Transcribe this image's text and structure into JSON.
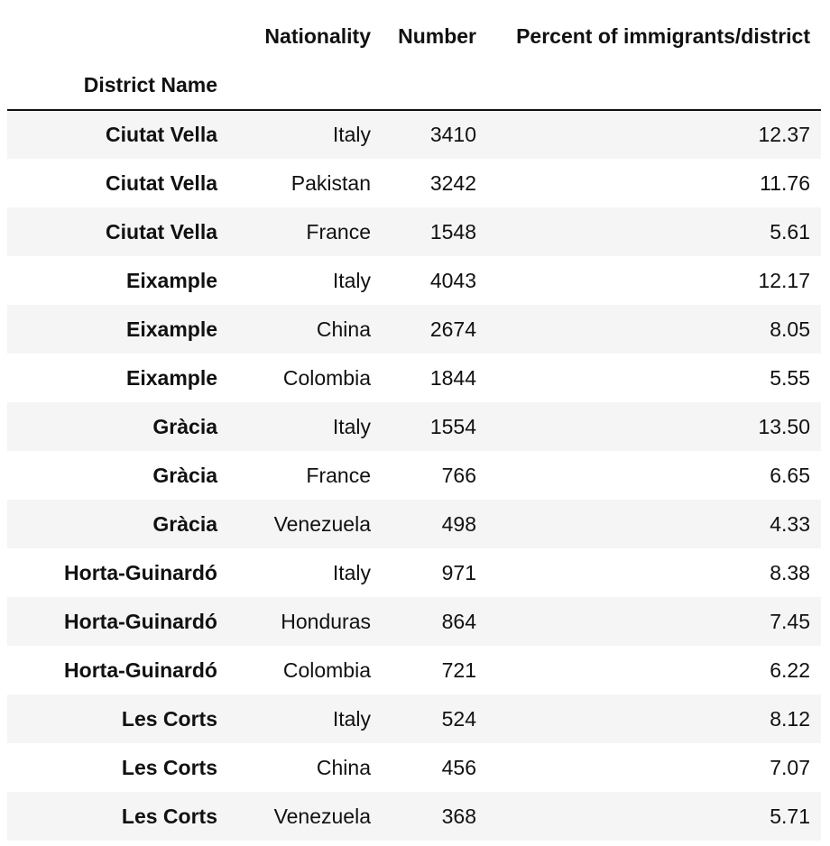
{
  "table": {
    "index_name": "District Name",
    "columns": [
      "Nationality",
      "Number",
      "Percent of immigrants/district"
    ],
    "rows": [
      {
        "district": "Ciutat Vella",
        "nationality": "Italy",
        "number": "3410",
        "percent": "12.37"
      },
      {
        "district": "Ciutat Vella",
        "nationality": "Pakistan",
        "number": "3242",
        "percent": "11.76"
      },
      {
        "district": "Ciutat Vella",
        "nationality": "France",
        "number": "1548",
        "percent": "5.61"
      },
      {
        "district": "Eixample",
        "nationality": "Italy",
        "number": "4043",
        "percent": "12.17"
      },
      {
        "district": "Eixample",
        "nationality": "China",
        "number": "2674",
        "percent": "8.05"
      },
      {
        "district": "Eixample",
        "nationality": "Colombia",
        "number": "1844",
        "percent": "5.55"
      },
      {
        "district": "Gràcia",
        "nationality": "Italy",
        "number": "1554",
        "percent": "13.50"
      },
      {
        "district": "Gràcia",
        "nationality": "France",
        "number": "766",
        "percent": "6.65"
      },
      {
        "district": "Gràcia",
        "nationality": "Venezuela",
        "number": "498",
        "percent": "4.33"
      },
      {
        "district": "Horta-Guinardó",
        "nationality": "Italy",
        "number": "971",
        "percent": "8.38"
      },
      {
        "district": "Horta-Guinardó",
        "nationality": "Honduras",
        "number": "864",
        "percent": "7.45"
      },
      {
        "district": "Horta-Guinardó",
        "nationality": "Colombia",
        "number": "721",
        "percent": "6.22"
      },
      {
        "district": "Les Corts",
        "nationality": "Italy",
        "number": "524",
        "percent": "8.12"
      },
      {
        "district": "Les Corts",
        "nationality": "China",
        "number": "456",
        "percent": "7.07"
      },
      {
        "district": "Les Corts",
        "nationality": "Venezuela",
        "number": "368",
        "percent": "5.71"
      }
    ]
  }
}
